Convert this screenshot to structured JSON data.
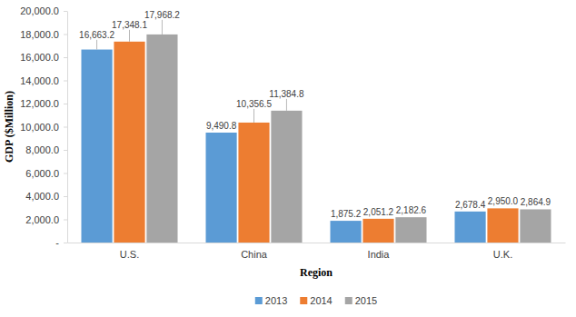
{
  "chart_data": {
    "type": "bar",
    "x_label": "Region",
    "y_label": "GDP ($Million)",
    "categories": [
      "U.S.",
      "China",
      "India",
      "U.K."
    ],
    "series": [
      {
        "name": "2013",
        "color": "#5b9bd5",
        "values": [
          16663.2,
          9490.8,
          1875.2,
          2678.4
        ],
        "value_labels": [
          "16,663.2",
          "9,490.8",
          "1,875.2",
          "2,678.4"
        ]
      },
      {
        "name": "2014",
        "color": "#ed7d31",
        "values": [
          17348.1,
          10356.5,
          2051.2,
          2950.0
        ],
        "value_labels": [
          "17,348.1",
          "10,356.5",
          "2,051.2",
          "2,950.0"
        ]
      },
      {
        "name": "2015",
        "color": "#a5a5a5",
        "values": [
          17968.2,
          11384.8,
          2182.6,
          2864.9
        ],
        "value_labels": [
          "17,968.2",
          "11,384.8",
          "2,182.6",
          "2,864.9"
        ]
      }
    ],
    "ylim": [
      0,
      20000
    ],
    "yticks": [
      {
        "value": 0,
        "label": "-"
      },
      {
        "value": 2000,
        "label": "2,000.0"
      },
      {
        "value": 4000,
        "label": "4,000.0"
      },
      {
        "value": 6000,
        "label": "6,000.0"
      },
      {
        "value": 8000,
        "label": "8,000.0"
      },
      {
        "value": 10000,
        "label": "10,000.0"
      },
      {
        "value": 12000,
        "label": "12,000.0"
      },
      {
        "value": 14000,
        "label": "14,000.0"
      },
      {
        "value": 16000,
        "label": "16,000.0"
      },
      {
        "value": 18000,
        "label": "18,000.0"
      },
      {
        "value": 20000,
        "label": "20,000.0"
      }
    ],
    "grid": false,
    "legend": "bottom",
    "data_labels": true
  }
}
